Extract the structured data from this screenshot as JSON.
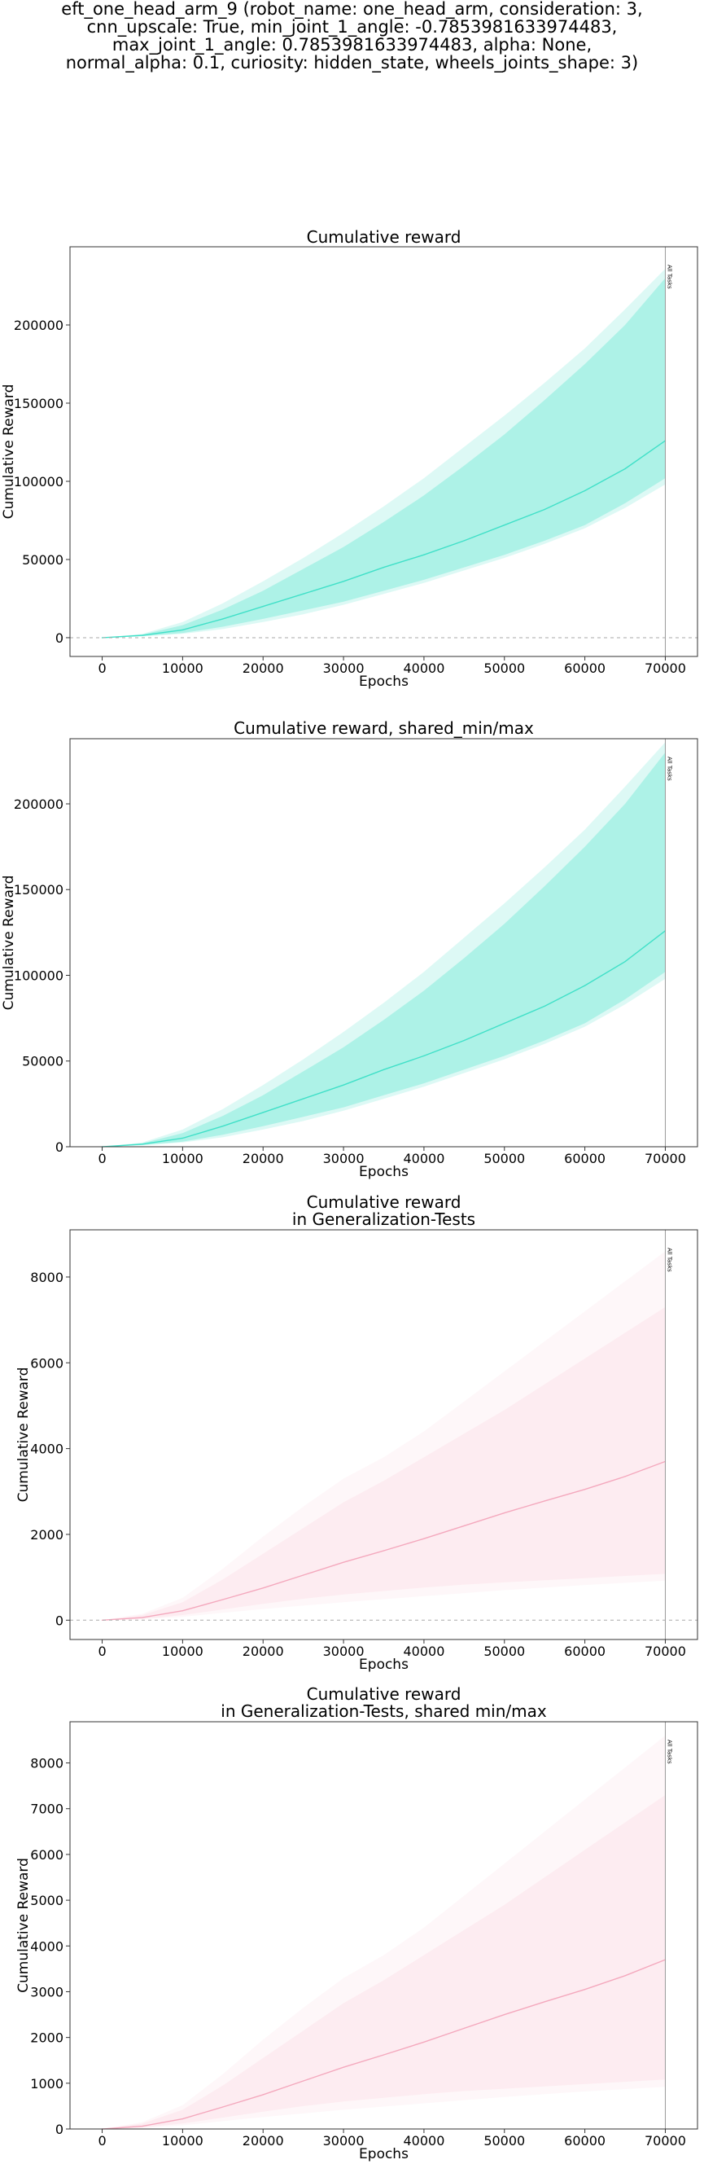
{
  "suptitle": [
    "eft_one_head_arm_9 (robot_name: one_head_arm, consideration: 3,",
    "cnn_upscale: True, min_joint_1_angle: -0.7853981633974483,",
    "max_joint_1_angle: 0.7853981633974483, alpha: None,",
    "normal_alpha: 0.1, curiosity: hidden_state, wheels_joints_shape: 3)"
  ],
  "chart_data": [
    {
      "type": "line",
      "title": [
        "Cumulative reward"
      ],
      "xlabel": "Epochs",
      "ylabel": "Cumulative Reward",
      "xlim": [
        -4000,
        74000
      ],
      "ylim": [
        -12000,
        250000
      ],
      "xticks": [
        0,
        10000,
        20000,
        30000,
        40000,
        50000,
        60000,
        70000
      ],
      "yticks": [
        0,
        50000,
        100000,
        150000,
        200000
      ],
      "zero_line": true,
      "vline": {
        "x": 70000,
        "label": "All Tasks"
      },
      "colors": {
        "line": "#40e0c8",
        "band": "#40e0c8"
      },
      "series": [
        {
          "x": [
            0,
            5000,
            10000,
            15000,
            20000,
            25000,
            30000,
            35000,
            40000,
            45000,
            50000,
            55000,
            60000,
            65000,
            70000
          ],
          "mean": [
            0,
            1500,
            5000,
            12000,
            20000,
            28000,
            36000,
            45000,
            53000,
            62000,
            72000,
            82000,
            94000,
            108000,
            126000
          ],
          "q_lo": [
            0,
            1000,
            3000,
            7000,
            12000,
            17500,
            23000,
            30000,
            37000,
            45000,
            53000,
            62000,
            72000,
            86000,
            102000
          ],
          "q_hi": [
            0,
            2000,
            8000,
            18000,
            30000,
            44000,
            58000,
            74000,
            91000,
            110000,
            130000,
            152000,
            175000,
            200000,
            230000
          ],
          "min": [
            0,
            800,
            2500,
            5500,
            10000,
            15000,
            21000,
            28000,
            35000,
            43000,
            51000,
            60000,
            70000,
            83000,
            98000
          ],
          "max": [
            0,
            2500,
            10000,
            22000,
            36000,
            51000,
            67000,
            84000,
            102000,
            122000,
            142000,
            163000,
            185000,
            210000,
            236000
          ]
        }
      ]
    },
    {
      "type": "line",
      "title": [
        "Cumulative reward, shared_min/max"
      ],
      "xlabel": "Epochs",
      "ylabel": "Cumulative Reward",
      "xlim": [
        -4000,
        74000
      ],
      "ylim": [
        0,
        238000
      ],
      "xticks": [
        0,
        10000,
        20000,
        30000,
        40000,
        50000,
        60000,
        70000
      ],
      "yticks": [
        0,
        50000,
        100000,
        150000,
        200000
      ],
      "zero_line": false,
      "vline": {
        "x": 70000,
        "label": "All Tasks"
      },
      "colors": {
        "line": "#40e0c8",
        "band": "#40e0c8"
      },
      "series": [
        {
          "x": [
            0,
            5000,
            10000,
            15000,
            20000,
            25000,
            30000,
            35000,
            40000,
            45000,
            50000,
            55000,
            60000,
            65000,
            70000
          ],
          "mean": [
            0,
            1500,
            5000,
            12000,
            20000,
            28000,
            36000,
            45000,
            53000,
            62000,
            72000,
            82000,
            94000,
            108000,
            126000
          ],
          "q_lo": [
            0,
            1000,
            3000,
            7000,
            12000,
            17500,
            23000,
            30000,
            37000,
            45000,
            53000,
            62000,
            72000,
            86000,
            102000
          ],
          "q_hi": [
            0,
            2000,
            8000,
            18000,
            30000,
            44000,
            58000,
            74000,
            91000,
            110000,
            130000,
            152000,
            175000,
            200000,
            230000
          ],
          "min": [
            0,
            800,
            2500,
            5500,
            10000,
            15000,
            21000,
            28000,
            35000,
            43000,
            51000,
            60000,
            70000,
            83000,
            98000
          ],
          "max": [
            0,
            2500,
            10000,
            22000,
            36000,
            51000,
            67000,
            84000,
            102000,
            122000,
            142000,
            163000,
            185000,
            210000,
            236000
          ]
        }
      ]
    },
    {
      "type": "line",
      "title": [
        "Cumulative reward",
        "in Generalization-Tests"
      ],
      "xlabel": "Epochs",
      "ylabel": "Cumulative Reward",
      "xlim": [
        -4000,
        74000
      ],
      "ylim": [
        -450,
        9100
      ],
      "xticks": [
        0,
        10000,
        20000,
        30000,
        40000,
        50000,
        60000,
        70000
      ],
      "yticks": [
        0,
        2000,
        4000,
        6000,
        8000
      ],
      "zero_line": true,
      "vline": {
        "x": 70000,
        "label": "All Tasks"
      },
      "colors": {
        "line": "#f4a8bd",
        "band": "#fbd5df"
      },
      "series": [
        {
          "x": [
            0,
            5000,
            10000,
            15000,
            20000,
            25000,
            30000,
            35000,
            40000,
            45000,
            50000,
            55000,
            60000,
            65000,
            70000
          ],
          "mean": [
            0,
            60,
            220,
            480,
            750,
            1050,
            1350,
            1620,
            1900,
            2200,
            2500,
            2780,
            3050,
            3350,
            3700
          ],
          "q_lo": [
            0,
            30,
            120,
            250,
            380,
            500,
            600,
            680,
            760,
            830,
            880,
            930,
            980,
            1030,
            1080
          ],
          "q_hi": [
            0,
            120,
            420,
            950,
            1550,
            2150,
            2750,
            3250,
            3800,
            4350,
            4900,
            5500,
            6100,
            6700,
            7300
          ],
          "min": [
            0,
            20,
            80,
            170,
            260,
            340,
            420,
            490,
            560,
            630,
            700,
            760,
            820,
            870,
            920
          ],
          "max": [
            0,
            150,
            520,
            1200,
            1950,
            2650,
            3300,
            3800,
            4400,
            5100,
            5800,
            6500,
            7200,
            7900,
            8600
          ]
        }
      ]
    },
    {
      "type": "line",
      "title": [
        "Cumulative reward",
        "in Generalization-Tests, shared min/max"
      ],
      "xlabel": "Epochs",
      "ylabel": "Cumulative Reward",
      "xlim": [
        -4000,
        74000
      ],
      "ylim": [
        0,
        8900
      ],
      "xticks": [
        0,
        10000,
        20000,
        30000,
        40000,
        50000,
        60000,
        70000
      ],
      "yticks": [
        0,
        1000,
        2000,
        3000,
        4000,
        5000,
        6000,
        7000,
        8000
      ],
      "zero_line": false,
      "vline": {
        "x": 70000,
        "label": "All Tasks"
      },
      "colors": {
        "line": "#f4a8bd",
        "band": "#fbd5df"
      },
      "series": [
        {
          "x": [
            0,
            5000,
            10000,
            15000,
            20000,
            25000,
            30000,
            35000,
            40000,
            45000,
            50000,
            55000,
            60000,
            65000,
            70000
          ],
          "mean": [
            0,
            60,
            220,
            480,
            750,
            1050,
            1350,
            1620,
            1900,
            2200,
            2500,
            2780,
            3050,
            3350,
            3700
          ],
          "q_lo": [
            0,
            30,
            120,
            250,
            380,
            500,
            600,
            680,
            760,
            830,
            880,
            930,
            980,
            1030,
            1080
          ],
          "q_hi": [
            0,
            120,
            420,
            950,
            1550,
            2150,
            2750,
            3250,
            3800,
            4350,
            4900,
            5500,
            6100,
            6700,
            7300
          ],
          "min": [
            0,
            20,
            80,
            170,
            260,
            340,
            420,
            490,
            560,
            630,
            700,
            760,
            820,
            870,
            920
          ],
          "max": [
            0,
            150,
            520,
            1200,
            1950,
            2650,
            3300,
            3800,
            4400,
            5100,
            5800,
            6500,
            7200,
            7900,
            8600
          ]
        }
      ]
    }
  ]
}
